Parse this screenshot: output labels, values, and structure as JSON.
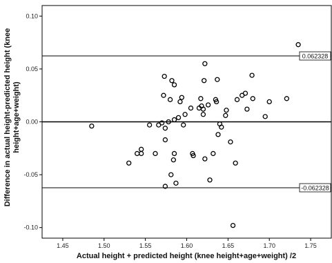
{
  "chart_data": {
    "type": "scatter",
    "title": "",
    "xlabel": "Actual height + predicted height (knee height+age+weight) /2",
    "ylabel_lines": [
      "Difference in actual height-predicted height (knee",
      "height+age+weight)"
    ],
    "xlim": [
      1.425,
      1.775
    ],
    "ylim": [
      -0.11,
      0.11
    ],
    "xticks": [
      1.45,
      1.5,
      1.55,
      1.6,
      1.65,
      1.7,
      1.75
    ],
    "xtick_labels": [
      "1.45",
      "1.50",
      "1.55",
      "1.60",
      "1.65",
      "1.70",
      "1.75"
    ],
    "yticks": [
      0.1,
      0.05,
      0.0,
      -0.05,
      -0.1
    ],
    "ytick_labels": [
      "0.10",
      "0.05",
      "0.00",
      "-0.05",
      "-0.10"
    ],
    "grid": false,
    "reference_lines": [
      {
        "y": 0.062328,
        "label": "0.062328"
      },
      {
        "y": 0.0,
        "label": ""
      },
      {
        "y": -0.062328,
        "label": "-0.062328"
      }
    ],
    "points": [
      {
        "x": 1.485,
        "y": -0.004
      },
      {
        "x": 1.53,
        "y": -0.039
      },
      {
        "x": 1.54,
        "y": -0.03
      },
      {
        "x": 1.545,
        "y": -0.026
      },
      {
        "x": 1.545,
        "y": -0.03
      },
      {
        "x": 1.555,
        "y": -0.003
      },
      {
        "x": 1.562,
        "y": -0.03
      },
      {
        "x": 1.566,
        "y": -0.003
      },
      {
        "x": 1.57,
        "y": -0.001
      },
      {
        "x": 1.572,
        "y": 0.025
      },
      {
        "x": 1.573,
        "y": 0.043
      },
      {
        "x": 1.574,
        "y": -0.006
      },
      {
        "x": 1.574,
        "y": -0.017
      },
      {
        "x": 1.574,
        "y": -0.061
      },
      {
        "x": 1.578,
        "y": 0.0
      },
      {
        "x": 1.58,
        "y": 0.021
      },
      {
        "x": 1.581,
        "y": -0.05
      },
      {
        "x": 1.582,
        "y": 0.039
      },
      {
        "x": 1.585,
        "y": 0.035
      },
      {
        "x": 1.585,
        "y": 0.002
      },
      {
        "x": 1.585,
        "y": -0.03
      },
      {
        "x": 1.584,
        "y": -0.036
      },
      {
        "x": 1.587,
        "y": -0.058
      },
      {
        "x": 1.59,
        "y": 0.004
      },
      {
        "x": 1.592,
        "y": 0.019
      },
      {
        "x": 1.594,
        "y": 0.023
      },
      {
        "x": 1.596,
        "y": -0.003
      },
      {
        "x": 1.598,
        "y": 0.007
      },
      {
        "x": 1.605,
        "y": 0.013
      },
      {
        "x": 1.607,
        "y": -0.03
      },
      {
        "x": 1.608,
        "y": -0.032
      },
      {
        "x": 1.615,
        "y": 0.013
      },
      {
        "x": 1.617,
        "y": 0.022
      },
      {
        "x": 1.618,
        "y": 0.015
      },
      {
        "x": 1.62,
        "y": 0.012
      },
      {
        "x": 1.62,
        "y": 0.007
      },
      {
        "x": 1.621,
        "y": 0.039
      },
      {
        "x": 1.622,
        "y": 0.055
      },
      {
        "x": 1.622,
        "y": -0.035
      },
      {
        "x": 1.626,
        "y": 0.016
      },
      {
        "x": 1.628,
        "y": -0.055
      },
      {
        "x": 1.632,
        "y": -0.03
      },
      {
        "x": 1.635,
        "y": 0.021
      },
      {
        "x": 1.636,
        "y": 0.019
      },
      {
        "x": 1.637,
        "y": 0.04
      },
      {
        "x": 1.638,
        "y": -0.012
      },
      {
        "x": 1.64,
        "y": -0.002
      },
      {
        "x": 1.642,
        "y": -0.005
      },
      {
        "x": 1.647,
        "y": 0.006
      },
      {
        "x": 1.648,
        "y": 0.011
      },
      {
        "x": 1.653,
        "y": -0.019
      },
      {
        "x": 1.656,
        "y": -0.098
      },
      {
        "x": 1.659,
        "y": -0.039
      },
      {
        "x": 1.661,
        "y": 0.021
      },
      {
        "x": 1.667,
        "y": 0.025
      },
      {
        "x": 1.671,
        "y": 0.027
      },
      {
        "x": 1.673,
        "y": 0.012
      },
      {
        "x": 1.679,
        "y": 0.044
      },
      {
        "x": 1.68,
        "y": 0.022
      },
      {
        "x": 1.695,
        "y": 0.005
      },
      {
        "x": 1.7,
        "y": 0.019
      },
      {
        "x": 1.721,
        "y": 0.022
      },
      {
        "x": 1.735,
        "y": 0.073
      }
    ]
  }
}
